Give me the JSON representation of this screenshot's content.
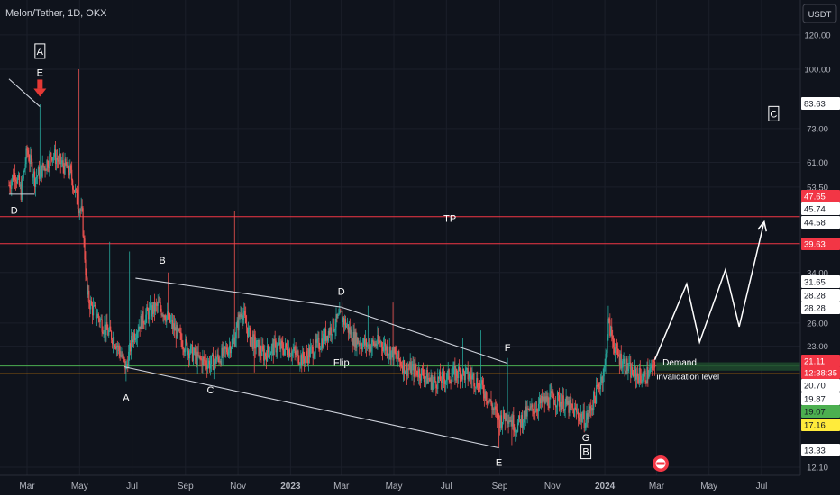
{
  "header": {
    "title": "Melon/Tether, 1D, OKX",
    "currency": "USDT"
  },
  "chart_data": {
    "type": "candlestick",
    "symbol": "Melon/Tether",
    "interval": "1D",
    "exchange": "OKX",
    "y_scale": "log",
    "ylim": [
      11.5,
      140
    ],
    "xlim": [
      "2022-02-08",
      "2024-07-31"
    ],
    "y_ticks": [
      120.0,
      100.0,
      73.0,
      61.0,
      53.5,
      34.0,
      26.0,
      23.0,
      12.1
    ],
    "x_ticks": [
      {
        "label": "Mar",
        "date": "2022-03-01",
        "bold": false
      },
      {
        "label": "May",
        "date": "2022-05-01",
        "bold": false
      },
      {
        "label": "Jul",
        "date": "2022-07-01",
        "bold": false
      },
      {
        "label": "Sep",
        "date": "2022-09-01",
        "bold": false
      },
      {
        "label": "Nov",
        "date": "2022-11-01",
        "bold": false
      },
      {
        "label": "2023",
        "date": "2023-01-01",
        "bold": true
      },
      {
        "label": "Mar",
        "date": "2023-03-01",
        "bold": false
      },
      {
        "label": "May",
        "date": "2023-05-01",
        "bold": false
      },
      {
        "label": "Jul",
        "date": "2023-07-01",
        "bold": false
      },
      {
        "label": "Sep",
        "date": "2023-09-01",
        "bold": false
      },
      {
        "label": "Nov",
        "date": "2023-11-01",
        "bold": false
      },
      {
        "label": "2024",
        "date": "2024-01-01",
        "bold": true
      },
      {
        "label": "Mar",
        "date": "2024-03-01",
        "bold": false
      },
      {
        "label": "May",
        "date": "2024-05-01",
        "bold": false
      },
      {
        "label": "Jul",
        "date": "2024-07-01",
        "bold": false
      }
    ],
    "price_tags": [
      {
        "value": "83.63",
        "style": "white"
      },
      {
        "value": "47.65",
        "style": "red"
      },
      {
        "value": "45.74",
        "style": "white"
      },
      {
        "value": "44.58",
        "style": "white"
      },
      {
        "value": "39.63",
        "style": "red"
      },
      {
        "value": "31.65",
        "style": "white"
      },
      {
        "value": "28.28",
        "style": "white"
      },
      {
        "value": "28.28",
        "style": "white"
      },
      {
        "value": "21.11",
        "style": "red"
      },
      {
        "value": "12:38:35",
        "style": "red"
      },
      {
        "value": "20.70",
        "style": "white"
      },
      {
        "value": "19.87",
        "style": "white"
      },
      {
        "value": "19.07",
        "style": "green"
      },
      {
        "value": "17.16",
        "style": "yellow"
      },
      {
        "value": "13.33",
        "style": "white"
      }
    ],
    "levels": [
      {
        "price": 45.74,
        "color": "#f23645"
      },
      {
        "price": 39.63,
        "color": "#f23645"
      },
      {
        "price": 20.7,
        "color": "#4caf50"
      },
      {
        "price": 19.87,
        "color": "#ff9800"
      }
    ],
    "demand_zone": {
      "label": "Demand",
      "top": 21.11,
      "bottom": 20.2,
      "start": "2024-03-01",
      "end": "2024-07-31"
    },
    "annotations": [
      {
        "text": "A",
        "boxed": true,
        "date": "2022-03-16",
        "price": 108
      },
      {
        "text": "E",
        "boxed": false,
        "date": "2022-03-16",
        "price": 96.5
      },
      {
        "text": "D",
        "boxed": false,
        "date": "2022-02-14",
        "price": 46.5
      },
      {
        "text": "TP",
        "boxed": false,
        "date": "2023-07-05",
        "price": 44.5
      },
      {
        "text": "B",
        "boxed": false,
        "date": "2022-08-05",
        "price": 35.6
      },
      {
        "text": "D",
        "boxed": false,
        "date": "2023-03-01",
        "price": 30.2
      },
      {
        "text": "F",
        "boxed": false,
        "date": "2023-09-10",
        "price": 22.4
      },
      {
        "text": "Flip",
        "boxed": false,
        "date": "2023-03-01",
        "price": 20.7
      },
      {
        "text": "A",
        "boxed": false,
        "date": "2022-06-24",
        "price": 17.2
      },
      {
        "text": "C",
        "boxed": false,
        "date": "2022-09-30",
        "price": 17.9
      },
      {
        "text": "E",
        "boxed": false,
        "date": "2023-08-31",
        "price": 12.2
      },
      {
        "text": "G",
        "boxed": false,
        "date": "2023-12-10",
        "price": 13.9
      },
      {
        "text": "B",
        "boxed": true,
        "date": "2023-12-10",
        "price": 12.9
      },
      {
        "text": "C",
        "boxed": true,
        "date": "2024-07-15",
        "price": 77.5
      },
      {
        "text": "Demand",
        "boxed": false,
        "date": "2024-03-08",
        "price": 20.75
      },
      {
        "text": "invalidation level",
        "boxed": false,
        "date": "2024-03-01",
        "price": 19.3
      }
    ],
    "trendlines": [
      {
        "from": {
          "date": "2022-02-08",
          "price": 95
        },
        "to": {
          "date": "2022-03-16",
          "price": 82
        },
        "color": "#cfd3dc"
      },
      {
        "from": {
          "date": "2022-02-08",
          "price": 51.5
        },
        "to": {
          "date": "2022-03-10",
          "price": 51.5
        },
        "color": "#cfd3dc"
      },
      {
        "from": {
          "date": "2022-07-05",
          "price": 33
        },
        "to": {
          "date": "2023-03-01",
          "price": 28.3
        },
        "color": "#cfd3dc"
      },
      {
        "from": {
          "date": "2023-03-01",
          "price": 28.3
        },
        "to": {
          "date": "2023-09-10",
          "price": 21.0
        },
        "color": "#cfd3dc"
      },
      {
        "from": {
          "date": "2022-06-22",
          "price": 20.6
        },
        "to": {
          "date": "2023-08-31",
          "price": 13.4
        },
        "color": "#cfd3dc"
      }
    ],
    "projection": {
      "color": "#ffffff",
      "points": [
        {
          "date": "2024-02-28",
          "price": 21.4
        },
        {
          "date": "2024-04-05",
          "price": 32.0
        },
        {
          "date": "2024-04-20",
          "price": 23.5
        },
        {
          "date": "2024-05-20",
          "price": 34.5
        },
        {
          "date": "2024-06-05",
          "price": 25.5
        },
        {
          "date": "2024-07-04",
          "price": 44.5
        }
      ]
    },
    "price_path": [
      [
        "2022-02-08",
        54
      ],
      [
        "2022-02-15",
        58
      ],
      [
        "2022-02-22",
        52
      ],
      [
        "2022-03-01",
        65
      ],
      [
        "2022-03-10",
        56
      ],
      [
        "2022-03-16",
        58
      ],
      [
        "2022-03-22",
        60
      ],
      [
        "2022-03-30",
        64
      ],
      [
        "2022-04-05",
        62
      ],
      [
        "2022-04-12",
        60
      ],
      [
        "2022-04-20",
        58
      ],
      [
        "2022-04-28",
        50
      ],
      [
        "2022-05-04",
        46
      ],
      [
        "2022-05-10",
        30
      ],
      [
        "2022-05-16",
        28
      ],
      [
        "2022-05-22",
        27
      ],
      [
        "2022-06-01",
        25
      ],
      [
        "2022-06-10",
        24
      ],
      [
        "2022-06-18",
        22
      ],
      [
        "2022-06-24",
        20.5
      ],
      [
        "2022-07-01",
        24
      ],
      [
        "2022-07-10",
        26
      ],
      [
        "2022-07-20",
        27.5
      ],
      [
        "2022-08-01",
        28.5
      ],
      [
        "2022-08-10",
        27
      ],
      [
        "2022-08-20",
        25
      ],
      [
        "2022-09-01",
        23
      ],
      [
        "2022-09-15",
        21.5
      ],
      [
        "2022-09-30",
        21
      ],
      [
        "2022-10-15",
        22
      ],
      [
        "2022-10-28",
        24
      ],
      [
        "2022-11-05",
        28
      ],
      [
        "2022-11-15",
        24
      ],
      [
        "2022-12-01",
        22
      ],
      [
        "2022-12-15",
        23
      ],
      [
        "2023-01-01",
        22.5
      ],
      [
        "2023-01-15",
        21.5
      ],
      [
        "2023-02-01",
        23
      ],
      [
        "2023-02-15",
        25
      ],
      [
        "2023-03-01",
        27
      ],
      [
        "2023-03-15",
        24
      ],
      [
        "2023-04-01",
        23
      ],
      [
        "2023-04-15",
        23.5
      ],
      [
        "2023-05-01",
        22
      ],
      [
        "2023-05-15",
        20.5
      ],
      [
        "2023-06-01",
        20
      ],
      [
        "2023-06-15",
        19
      ],
      [
        "2023-07-01",
        19.5
      ],
      [
        "2023-07-15",
        20
      ],
      [
        "2023-08-01",
        19.5
      ],
      [
        "2023-08-15",
        18
      ],
      [
        "2023-08-31",
        15.5
      ],
      [
        "2023-09-10",
        16
      ],
      [
        "2023-09-20",
        15
      ],
      [
        "2023-10-01",
        16
      ],
      [
        "2023-10-15",
        16.8
      ],
      [
        "2023-11-01",
        17.5
      ],
      [
        "2023-11-15",
        17
      ],
      [
        "2023-12-01",
        16
      ],
      [
        "2023-12-10",
        15.5
      ],
      [
        "2023-12-20",
        17.5
      ],
      [
        "2024-01-01",
        20.5
      ],
      [
        "2024-01-05",
        26
      ],
      [
        "2024-01-15",
        22
      ],
      [
        "2024-02-01",
        20
      ],
      [
        "2024-02-15",
        19.5
      ],
      [
        "2024-02-28",
        20.7
      ]
    ],
    "wicks": [
      {
        "date": "2022-03-16",
        "high": 83
      },
      {
        "date": "2022-04-30",
        "high": 100
      },
      {
        "date": "2022-06-05",
        "high": 40
      },
      {
        "date": "2022-06-24",
        "low": 19.1
      },
      {
        "date": "2022-06-28",
        "high": 38
      },
      {
        "date": "2022-08-12",
        "high": 34
      },
      {
        "date": "2022-10-28",
        "high": 47
      },
      {
        "date": "2022-11-20",
        "low": 20.0
      },
      {
        "date": "2023-04-01",
        "high": 28.5
      },
      {
        "date": "2023-04-30",
        "high": 29
      },
      {
        "date": "2023-07-20",
        "high": 24
      },
      {
        "date": "2023-08-10",
        "high": 25
      },
      {
        "date": "2023-08-31",
        "low": 13.4
      },
      {
        "date": "2023-09-10",
        "high": 21.6
      },
      {
        "date": "2023-09-15",
        "low": 13.6
      },
      {
        "date": "2024-01-05",
        "high": 28.5
      }
    ]
  }
}
